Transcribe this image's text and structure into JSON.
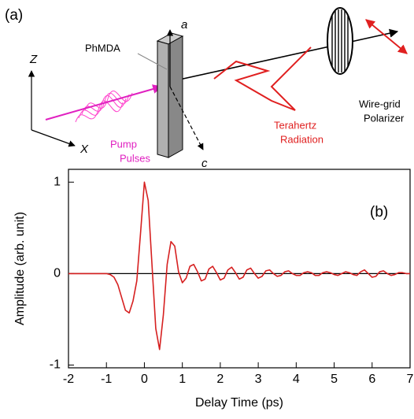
{
  "diagram": {
    "panel_label": "(a)",
    "axis_z": "Z",
    "axis_x": "X",
    "axis_a": "a",
    "axis_c": "c",
    "sample": "PhMDA",
    "pump": [
      "Pump",
      "Pulses"
    ],
    "terahertz": [
      "Terahertz",
      "Radiation"
    ],
    "polarizer": [
      "Wire-grid",
      "Polarizer"
    ]
  },
  "chart_data": {
    "type": "line",
    "annotation": "(b)",
    "x_label": "Delay Time (ps)",
    "y_label": "Amplitude (arb. unit)",
    "color": "#d62020",
    "zero_line": true,
    "x": [
      -2,
      -1.5,
      -1.1,
      -1.0,
      -0.9,
      -0.8,
      -0.7,
      -0.6,
      -0.5,
      -0.4,
      -0.3,
      -0.2,
      -0.1,
      0,
      0.1,
      0.2,
      0.3,
      0.4,
      0.5,
      0.6,
      0.7,
      0.8,
      0.9,
      1.0,
      1.1,
      1.2,
      1.3,
      1.4,
      1.5,
      1.6,
      1.7,
      1.8,
      1.9,
      2.0,
      2.1,
      2.2,
      2.3,
      2.4,
      2.5,
      2.6,
      2.7,
      2.8,
      2.9,
      3.0,
      3.1,
      3.2,
      3.3,
      3.4,
      3.5,
      3.6,
      3.7,
      3.8,
      3.9,
      4.0,
      4.1,
      4.2,
      4.3,
      4.4,
      4.5,
      4.6,
      4.7,
      4.8,
      4.9,
      5.0,
      5.1,
      5.2,
      5.3,
      5.4,
      5.5,
      5.6,
      5.7,
      5.8,
      5.9,
      6.0,
      6.1,
      6.2,
      6.3,
      6.4,
      6.5,
      6.6,
      6.7,
      6.8,
      6.9,
      7.0
    ],
    "values": [
      0,
      0,
      0,
      0,
      -0.01,
      -0.04,
      -0.12,
      -0.26,
      -0.4,
      -0.43,
      -0.3,
      -0.08,
      0.45,
      1.0,
      0.8,
      0.1,
      -0.6,
      -0.83,
      -0.45,
      0.1,
      0.35,
      0.3,
      0.02,
      -0.1,
      -0.05,
      0.08,
      0.1,
      0.02,
      -0.08,
      -0.06,
      0.05,
      0.08,
      0.01,
      -0.07,
      -0.05,
      0.04,
      0.07,
      0.01,
      -0.06,
      -0.04,
      0.04,
      0.06,
      0.0,
      -0.05,
      -0.03,
      0.03,
      0.04,
      0.0,
      -0.03,
      -0.02,
      0.02,
      0.03,
      0.0,
      -0.02,
      -0.02,
      0.01,
      0.02,
      0.01,
      -0.02,
      -0.02,
      0.01,
      0.02,
      0.01,
      -0.01,
      -0.02,
      0.0,
      0.02,
      0.01,
      -0.01,
      -0.02,
      0.02,
      0.04,
      0.0,
      -0.04,
      -0.03,
      0.02,
      0.03,
      0.0,
      -0.02,
      -0.01,
      0.01,
      0.01,
      0.0,
      0.0
    ],
    "xlim": [
      -2,
      7
    ],
    "xticks": [
      -2,
      -1,
      0,
      1,
      2,
      3,
      4,
      5,
      6,
      7
    ],
    "ylim": [
      -1.03,
      1.14
    ],
    "yticks": [
      -1,
      0,
      1
    ]
  }
}
